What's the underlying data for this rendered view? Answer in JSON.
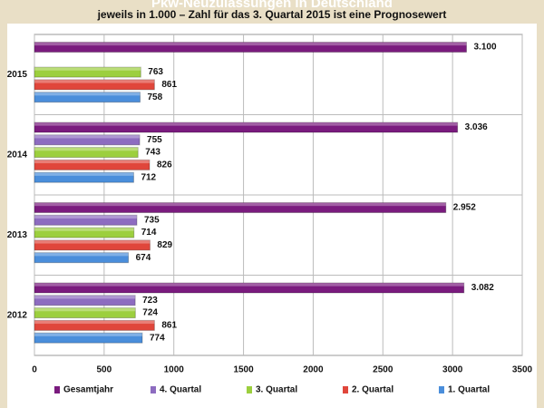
{
  "chart_data": {
    "type": "hbar",
    "title": "Pkw-Neuzulassungen in Deutschland",
    "subtitle": "jeweils in 1.000 – Zahl für das 3. Quartal 2015 ist eine Prognosewert",
    "categories": [
      "2015",
      "2014",
      "2013",
      "2012"
    ],
    "series": [
      {
        "name": "Gesamtjahr",
        "color": "#7a1b7e",
        "values": [
          3100,
          3036,
          2952,
          3082
        ],
        "value_labels": [
          "3.100",
          "3.036",
          "2.952",
          "3.082"
        ]
      },
      {
        "name": "4. Quartal",
        "color": "#8d6cc0",
        "values": [
          null,
          755,
          735,
          723
        ]
      },
      {
        "name": "3. Quartal",
        "color": "#9ccf3e",
        "values": [
          763,
          743,
          714,
          724
        ]
      },
      {
        "name": "2. Quartal",
        "color": "#e0463b",
        "values": [
          861,
          826,
          829,
          861
        ]
      },
      {
        "name": "1. Quartal",
        "color": "#4a8edb",
        "values": [
          758,
          712,
          674,
          774
        ]
      }
    ],
    "xlim": [
      0,
      3500
    ],
    "xticks": [
      0,
      500,
      1000,
      1500,
      2000,
      2500,
      3000,
      3500
    ],
    "grid": true
  }
}
